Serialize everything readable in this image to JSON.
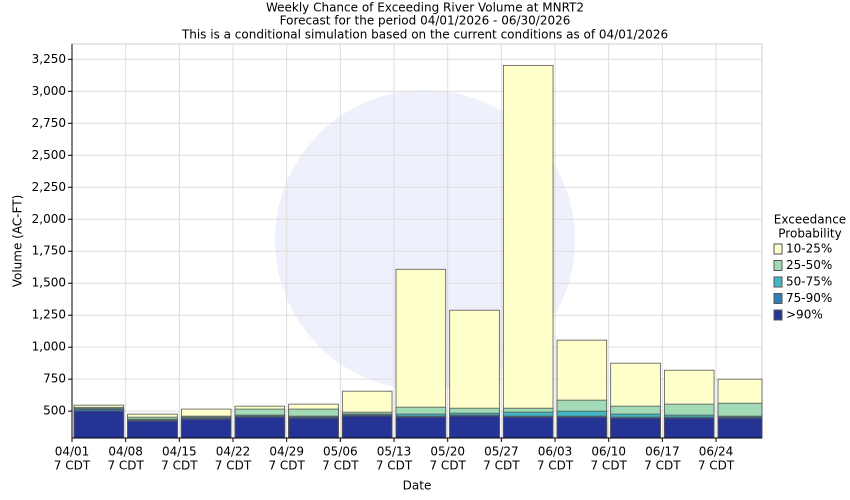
{
  "chart_data": {
    "type": "bar",
    "title": "Weekly Chance of Exceeding River Volume at MNRT2",
    "subtitle": [
      "Forecast for the period 04/01/2026 - 06/30/2026",
      "This is a conditional simulation based on the current conditions as of 04/01/2026"
    ],
    "x_label": "Date",
    "y_label": "Volume (AC-FT)",
    "categories": [
      "04/01",
      "04/08",
      "04/15",
      "04/22",
      "04/29",
      "05/06",
      "05/13",
      "05/20",
      "05/27",
      "06/03",
      "06/10",
      "06/17",
      "06/24"
    ],
    "category_sublabel": "7 CDT",
    "legend_title": [
      "Exceedance",
      "Probability"
    ],
    "series": [
      {
        "name": "10-25%",
        "color": "#ffffcc",
        "values": [
          547,
          477,
          516,
          539,
          555,
          656,
          1609,
          1289,
          3203,
          1055,
          875,
          820,
          750
        ]
      },
      {
        "name": "25-50%",
        "color": "#a1dab4",
        "values": [
          530,
          453,
          461,
          516,
          516,
          492,
          531,
          523,
          523,
          586,
          539,
          555,
          562
        ]
      },
      {
        "name": "50-75%",
        "color": "#41b6c4",
        "values": [
          520,
          437,
          453,
          469,
          461,
          477,
          477,
          484,
          492,
          500,
          477,
          469,
          461
        ]
      },
      {
        "name": "75-90%",
        "color": "#2c7fb8",
        "values": [
          515,
          430,
          445,
          461,
          453,
          469,
          461,
          469,
          461,
          461,
          453,
          453,
          453
        ]
      },
      {
        "name": ">90%",
        "color": "#253494",
        "values": [
          500,
          422,
          437,
          453,
          445,
          461,
          453,
          461,
          453,
          453,
          445,
          445,
          445
        ]
      }
    ],
    "ylim": [
      290,
      3370
    ],
    "yticks": [
      500,
      750,
      {
        "value": 1000,
        "label": "1,000"
      },
      {
        "value": 1250,
        "label": "1,250"
      },
      {
        "value": 1500,
        "label": "1,500"
      },
      {
        "value": 1750,
        "label": "1,750"
      },
      {
        "value": 2000,
        "label": "2,000"
      },
      {
        "value": 2250,
        "label": "2,250"
      },
      {
        "value": 2500,
        "label": "2,500"
      },
      {
        "value": 2750,
        "label": "2,750"
      },
      {
        "value": 3000,
        "label": "3,000"
      },
      {
        "value": 3250,
        "label": "3,250"
      }
    ],
    "grid": true
  }
}
